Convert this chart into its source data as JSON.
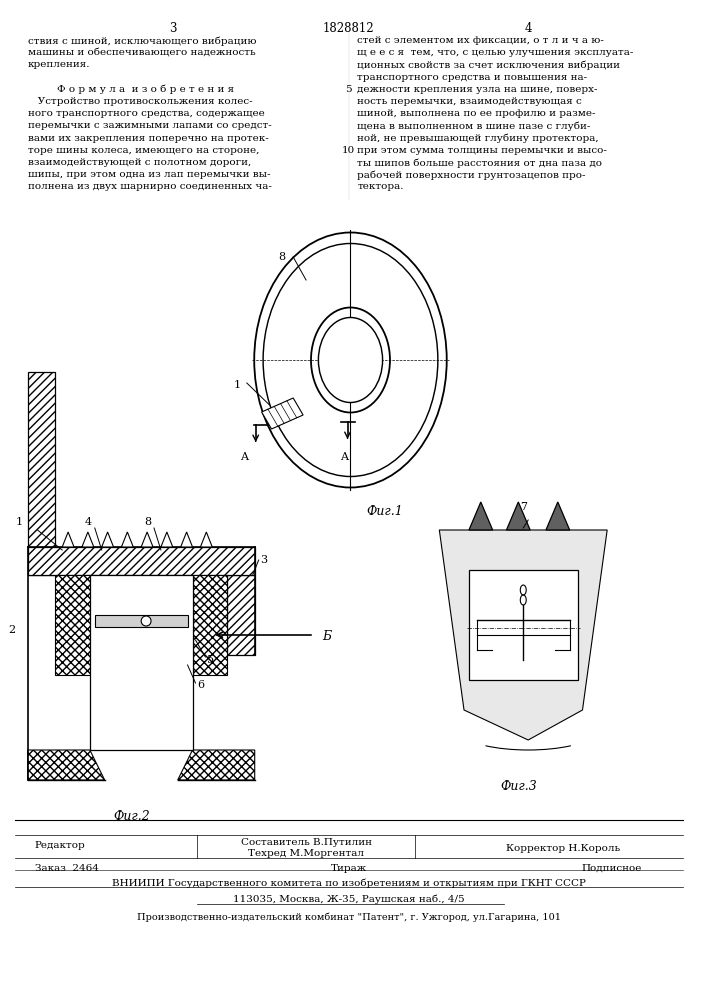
{
  "page_number_left": "3",
  "patent_number": "1828812",
  "page_number_right": "4",
  "text_left": [
    "ствия с шиной, исключающего вибрацию",
    "машины и обеспечивающего надежность",
    "крепления.",
    "",
    "Ф о р м у л а  и з о б р е т е н и я",
    "   Устройство противоскольжения колес-",
    "ного транспортного средства, содержащее",
    "перемычки с зажимными лапами со средст-",
    "вами их закрепления поперечно на протек-",
    "торе шины колеса, имеющего на стороне,",
    "взаимодействующей с полотном дороги,",
    "шипы, при этом одна из лап перемычки вы-",
    "полнена из двух шарнирно соединенных ча-"
  ],
  "text_right": [
    "стей с элементом их фиксации, о т л и ч а ю-",
    "щ е е с я  тем, что, с целью улучшения эксплуата-",
    "ционных свойств за счет исключения вибрации",
    "транспортного средства и повышения на-",
    "дежности крепления узла на шине, поверх-",
    "ность перемычки, взаимодействующая с",
    "шиной, выполнена по ее профилю и разме-",
    "щена в выполненном в шине пазе с глуби-",
    "ной, не превышающей глубину протектора,",
    "при этом сумма толщины перемычки и высо-",
    "ты шипов больше расстояния от дна паза до",
    "рабочей поверхности грунтозацепов про-",
    "тектора."
  ],
  "line_number_5": "5",
  "line_number_10": "10",
  "fig1_label": "Фиг.1",
  "fig2_label": "Фиг.2",
  "fig3_label": "Фиг.3",
  "bottom_editor_label": "Редактор",
  "bottom_compiler_label": "Составитель В.Путилин",
  "bottom_corrector_label": "Корректор Н.Король",
  "bottom_tech_label": "Техред М.Моргентал",
  "bottom_order": "Заказ  2464",
  "bottom_tiraz": "Тираж",
  "bottom_podpisnoe": "Подписное",
  "bottom_vniiipi": "ВНИИПИ Государственного комитета по изобретениям и открытиям при ГКНТ СССР",
  "bottom_address": "113035, Москва, Ж-35, Раушская наб., 4/5",
  "bottom_factory": "Производственно-издательский комбинат \"Патент\", г. Ужгород, ул.Гагарина, 101",
  "bg_color": "#ffffff",
  "text_color": "#000000"
}
